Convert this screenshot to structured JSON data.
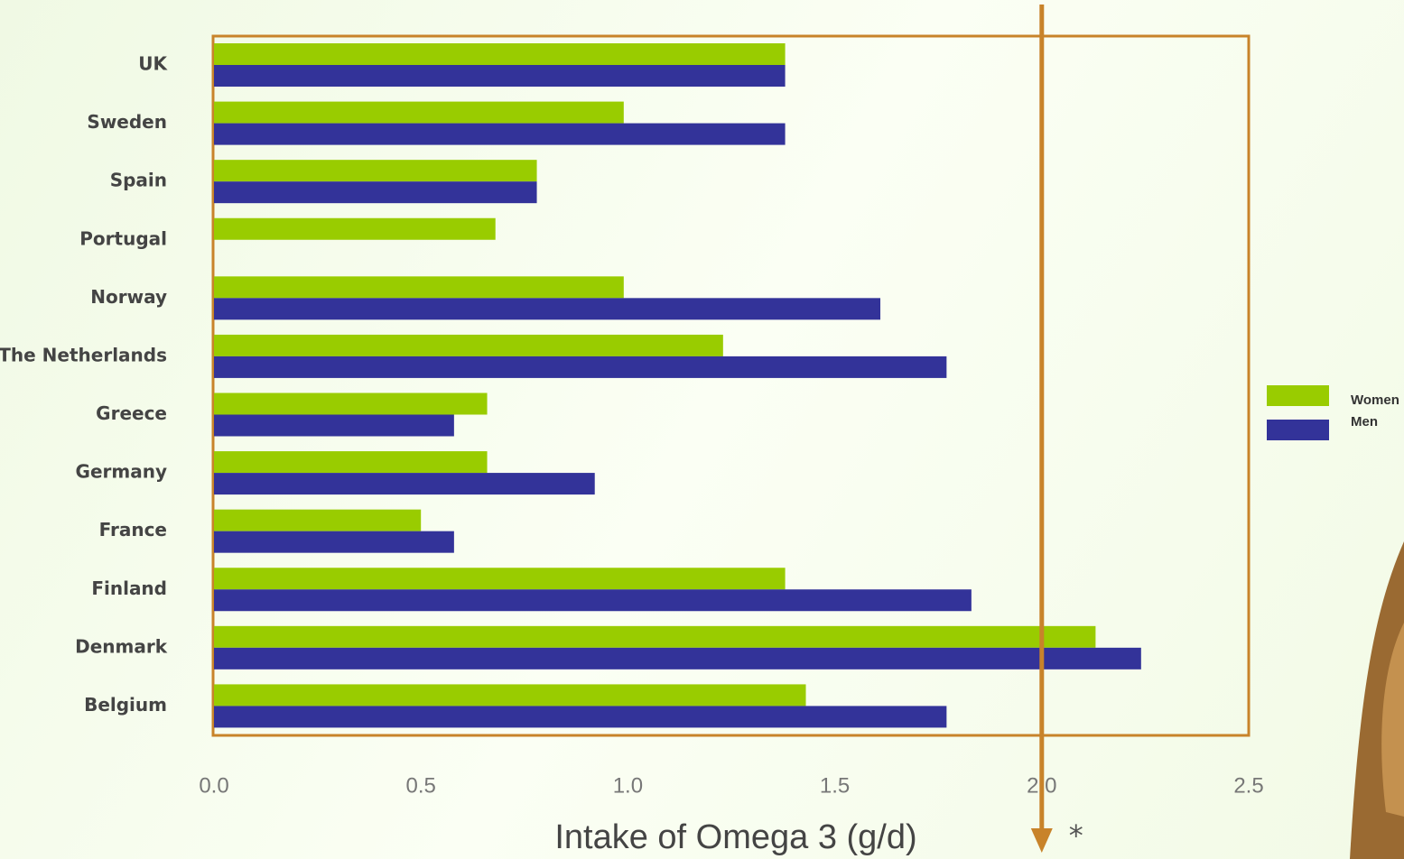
{
  "chart_data": {
    "type": "bar",
    "orientation": "horizontal",
    "x_label": "Intake of Omega 3 (g/d)",
    "categories": [
      "UK",
      "Sweden",
      "Spain",
      "Portugal",
      "Norway",
      "The Netherlands",
      "Greece",
      "Germany",
      "France",
      "Finland",
      "Denmark",
      "Belgium"
    ],
    "series": [
      {
        "name": "Women",
        "color": "#99cc00",
        "values": [
          1.38,
          0.99,
          0.78,
          0.68,
          0.99,
          1.23,
          0.66,
          0.66,
          0.5,
          1.38,
          2.13,
          1.43
        ]
      },
      {
        "name": "Men",
        "color": "#333399",
        "values": [
          1.38,
          1.38,
          0.78,
          null,
          1.61,
          1.77,
          0.58,
          0.92,
          0.58,
          1.83,
          2.24,
          1.77
        ]
      }
    ],
    "xlim": [
      0,
      2.5
    ],
    "xticks": [
      {
        "value": 0,
        "label": "0.0"
      },
      0.5,
      {
        "value": 1,
        "label": "1.0"
      },
      1.5,
      {
        "value": 2,
        "label": "2.0"
      },
      2.5
    ],
    "reference_line": {
      "value": 2,
      "label": "*",
      "color": "#c8832a"
    },
    "legend": "right"
  }
}
